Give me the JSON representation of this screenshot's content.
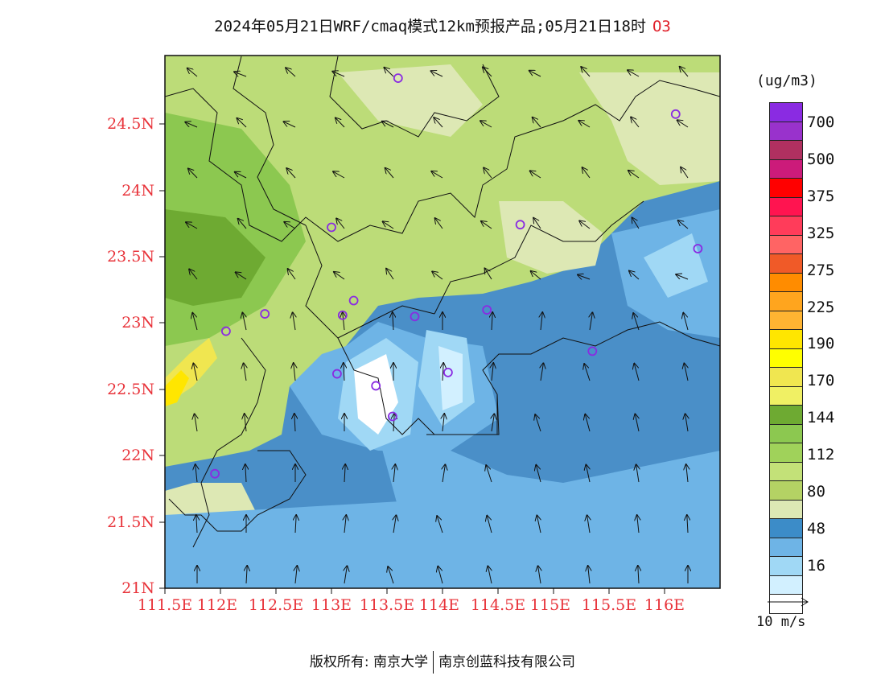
{
  "title": {
    "text": "2024年05月21日WRF/cmaq模式12km预报产品;05月21日18时",
    "species": "O3"
  },
  "map": {
    "lon_range": [
      111.5,
      116.5
    ],
    "lat_range": [
      21.0,
      25.0
    ],
    "y_ticks": [
      "24.5N",
      "24N",
      "23.5N",
      "23N",
      "22.5N",
      "22N",
      "21.5N",
      "21N"
    ],
    "x_ticks": [
      "111.5E",
      "112E",
      "112.5E",
      "113E",
      "113.5E",
      "114E",
      "114.5E",
      "115E",
      "115.5E",
      "116E"
    ],
    "stations": [
      {
        "lon": 113.6,
        "lat": 24.83
      },
      {
        "lon": 116.1,
        "lat": 24.56
      },
      {
        "lon": 113.0,
        "lat": 23.71
      },
      {
        "lon": 114.7,
        "lat": 23.73
      },
      {
        "lon": 116.3,
        "lat": 23.55
      },
      {
        "lon": 113.2,
        "lat": 23.16
      },
      {
        "lon": 112.4,
        "lat": 23.06
      },
      {
        "lon": 113.1,
        "lat": 23.05
      },
      {
        "lon": 113.75,
        "lat": 23.04
      },
      {
        "lon": 114.4,
        "lat": 23.09
      },
      {
        "lon": 112.05,
        "lat": 22.93
      },
      {
        "lon": 115.35,
        "lat": 22.78
      },
      {
        "lon": 113.05,
        "lat": 22.61
      },
      {
        "lon": 114.05,
        "lat": 22.62
      },
      {
        "lon": 113.4,
        "lat": 22.52
      },
      {
        "lon": 113.55,
        "lat": 22.29
      },
      {
        "lon": 111.95,
        "lat": 21.86
      }
    ]
  },
  "legend": {
    "title": "(ug/m3)",
    "colors": [
      "#8a2be2",
      "#9932cc",
      "#b03060",
      "#cc1b7a",
      "#ff0000",
      "#ff1450",
      "#ff3c5a",
      "#ff6464",
      "#f05a28",
      "#ff8c00",
      "#ffa51e",
      "#ffb432",
      "#ffe600",
      "#ffff00",
      "#f0e650",
      "#f0f064",
      "#6eaa32",
      "#8cc850",
      "#a0d25a",
      "#c3e178",
      "#b4d264",
      "#dde8b4",
      "#3c8cc8",
      "#6eb4e6",
      "#a0d8f5",
      "#d2f0ff",
      "#ffffff"
    ],
    "labels": [
      "700",
      "500",
      "375",
      "325",
      "275",
      "225",
      "190",
      "170",
      "144",
      "112",
      "80",
      "48",
      "16"
    ]
  },
  "wind_reference": {
    "label": "10 m/s"
  },
  "footer": {
    "left": "版权所有: 南京大学",
    "right": "南京创蓝科技有限公司"
  }
}
